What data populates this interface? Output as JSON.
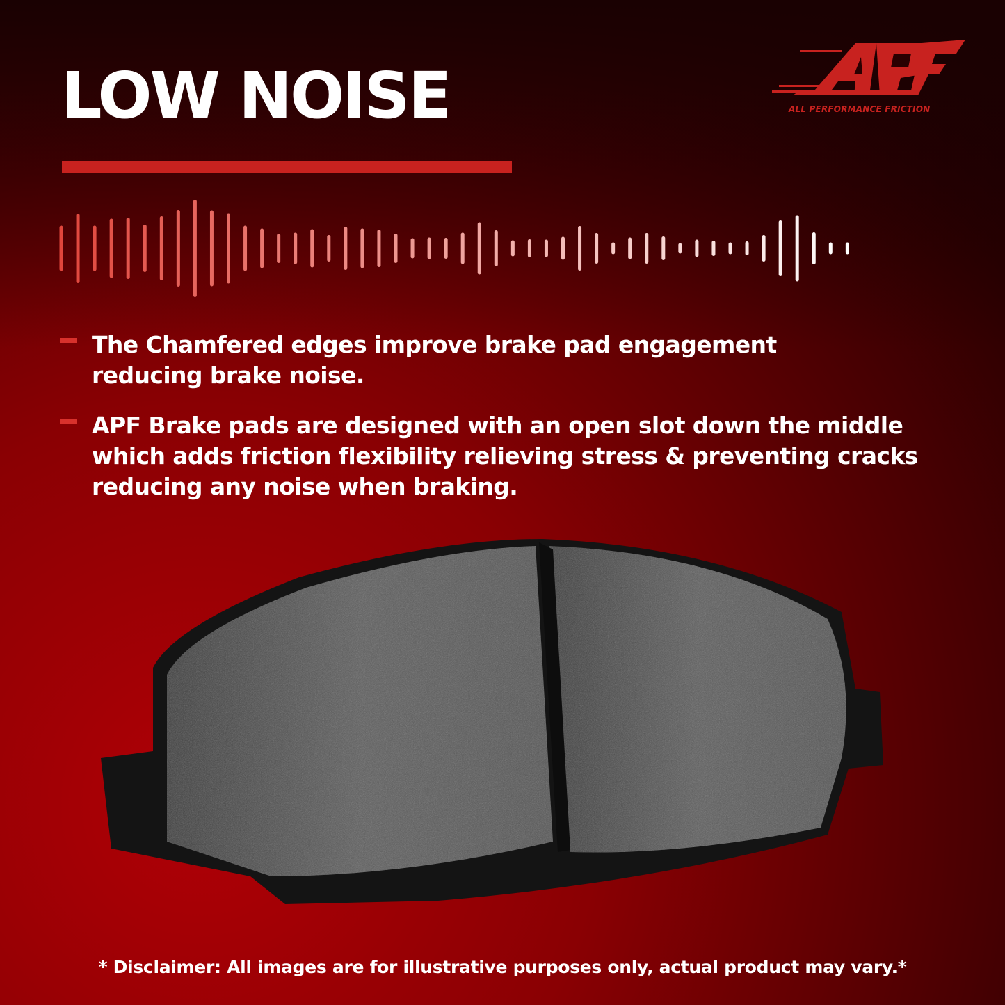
{
  "header": {
    "title": "LOW NOISE"
  },
  "brand": {
    "logo_text": "APF",
    "tagline": "ALL PERFORMANCE FRICTION",
    "accent_color": "#c8221f"
  },
  "bullets": [
    {
      "text": "The Chamfered edges improve brake pad engagement reducing brake noise."
    },
    {
      "text": "APF Brake pads are designed with an open slot down the middle which adds friction flexibility relieving stress & preventing cracks reducing any noise when braking."
    }
  ],
  "disclaimer": "* Disclaimer: All images are for illustrative purposes only, actual product may vary.*",
  "icons": [
    "sound-wave-icon",
    "bullet-dash-icon"
  ]
}
